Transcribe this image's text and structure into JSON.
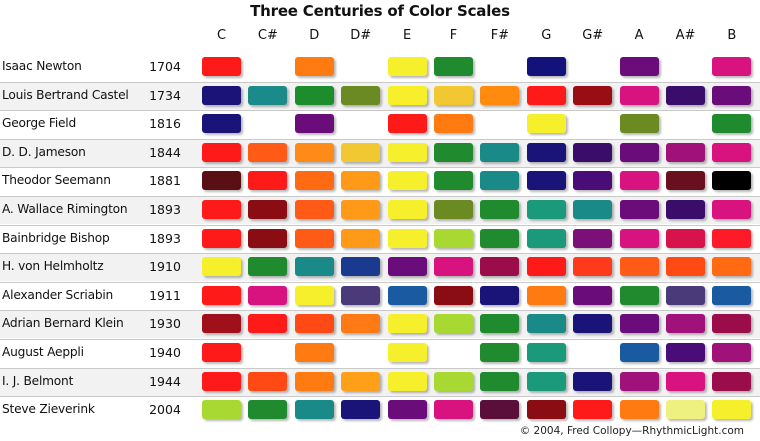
{
  "chart_data": {
    "type": "table",
    "title": "Three Centuries of Color Scales",
    "notes": [
      "C",
      "C#",
      "D",
      "D#",
      "E",
      "F",
      "F#",
      "G",
      "G#",
      "A",
      "A#",
      "B"
    ],
    "rows": [
      {
        "name": "Isaac Newton",
        "year": "1704",
        "colors": [
          "#ff1a1a",
          null,
          "#ff7a10",
          null,
          "#f6f02c",
          "#1f8a2e",
          null,
          "#12127a",
          null,
          "#6a0d7a",
          null,
          "#d8127e"
        ]
      },
      {
        "name": "Louis Bertrand Castel",
        "year": "1734",
        "colors": [
          "#1a1478",
          "#1a8a8a",
          "#1c8c2c",
          "#6b8a22",
          "#f7ef2a",
          "#f2c832",
          "#ff8a10",
          "#ff1a1a",
          "#9b0d14",
          "#d8127e",
          "#3a0d6b",
          "#6a0d7a"
        ]
      },
      {
        "name": "George Field",
        "year": "1816",
        "colors": [
          "#1a1478",
          null,
          "#6a0d7a",
          null,
          "#ff1a1a",
          "#ff7a10",
          null,
          "#f6f02c",
          null,
          "#6b8a22",
          null,
          "#1f8a2e"
        ]
      },
      {
        "name": "D. D. Jameson",
        "year": "1844",
        "colors": [
          "#ff1a1a",
          "#ff5a16",
          "#ff8a18",
          "#f2c832",
          "#f6f02c",
          "#1f8a2e",
          "#1a8a88",
          "#1a1478",
          "#3a0d6b",
          "#6a0d7a",
          "#a0117a",
          "#d8127e"
        ]
      },
      {
        "name": "Theodor Seemann",
        "year": "1881",
        "colors": [
          "#5a0f14",
          "#ff1a1a",
          "#ff6a12",
          "#ff9a18",
          "#f6f02c",
          "#1f8a2e",
          "#1a8a88",
          "#1a1478",
          "#4a0d78",
          "#d8127e",
          "#6a0f1e",
          "#000000"
        ]
      },
      {
        "name": "A. Wallace Rimington",
        "year": "1893",
        "colors": [
          "#ff1a1a",
          "#8a0d14",
          "#ff5a16",
          "#ff9a18",
          "#f6f02c",
          "#6b8a22",
          "#1f8a2e",
          "#1a9a7a",
          "#1a8a88",
          "#6a0d7a",
          "#3a0d6b",
          "#d8127e"
        ]
      },
      {
        "name": "Bainbridge Bishop",
        "year": "1893",
        "colors": [
          "#ff1a1a",
          "#8a0d14",
          "#ff5a16",
          "#ff9a18",
          "#f6f02c",
          "#a8d832",
          "#1f8a2e",
          "#1a9a7a",
          "#7a1078",
          "#d8127e",
          "#d8124a",
          "#ff1a2a"
        ]
      },
      {
        "name": "H. von Helmholtz",
        "year": "1910",
        "colors": [
          "#f6f02c",
          "#1f8a2e",
          "#1a8a88",
          "#1a3a90",
          "#6a0d7a",
          "#d8127e",
          "#9b0d4a",
          "#ff1a1a",
          "#ff3a1a",
          "#ff5a16",
          "#ff4a14",
          "#ff6a12"
        ]
      },
      {
        "name": "Alexander Scriabin",
        "year": "1911",
        "colors": [
          "#ff1a1a",
          "#d8127e",
          "#f6f02c",
          "#4a3a7a",
          "#1a5aa0",
          "#8a0d14",
          "#1a1478",
          "#ff7a10",
          "#6a0d7a",
          "#1f8a2e",
          "#4a3a7a",
          "#1a5aa0"
        ]
      },
      {
        "name": "Adrian Bernard Klein",
        "year": "1930",
        "colors": [
          "#a0101a",
          "#ff1a1a",
          "#ff4a16",
          "#ff7a14",
          "#f6f02c",
          "#a8d832",
          "#1f8a2e",
          "#1a8a88",
          "#1a1478",
          "#6a0d7a",
          "#a0117a",
          "#9b0d4a"
        ]
      },
      {
        "name": "August Aeppli",
        "year": "1940",
        "colors": [
          "#ff1a1a",
          null,
          "#ff7a10",
          null,
          "#f6f02c",
          null,
          "#1f8a2e",
          "#1a9a7a",
          null,
          "#1a5aa0",
          "#4a0d78",
          "#a0117a"
        ]
      },
      {
        "name": "I. J. Belmont",
        "year": "1944",
        "colors": [
          "#ff1a1a",
          "#ff4a16",
          "#ff7a10",
          "#ffa018",
          "#f6f02c",
          "#a8d832",
          "#1f8a2e",
          "#1a9a7a",
          "#1a1478",
          "#a0117a",
          "#d8127e",
          "#9b0d4a"
        ]
      },
      {
        "name": "Steve Zieverink",
        "year": "2004",
        "colors": [
          "#a8d832",
          "#1f8a2e",
          "#1a8a88",
          "#1a1478",
          "#6a0d7a",
          "#d8127e",
          "#5a0f3a",
          "#8a0d14",
          "#ff1a1a",
          "#ff7a10",
          "#eef080",
          "#f6f02c"
        ]
      }
    ]
  },
  "credit": "© 2004, Fred Collopy—RhythmicLight.com"
}
